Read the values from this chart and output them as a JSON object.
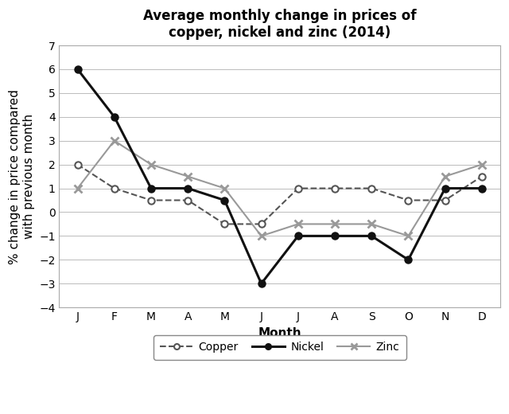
{
  "title": "Average monthly change in prices of\ncopper, nickel and zinc (2014)",
  "xlabel": "Month",
  "ylabel": "% change in price compared\nwith previous month",
  "months": [
    "J",
    "F",
    "M",
    "A",
    "M",
    "J",
    "J",
    "A",
    "S",
    "O",
    "N",
    "D"
  ],
  "copper": [
    2,
    1,
    0.5,
    0.5,
    -0.5,
    -0.5,
    1,
    1,
    1,
    0.5,
    0.5,
    1.5
  ],
  "nickel": [
    6,
    4,
    1,
    1,
    0.5,
    -3,
    -1,
    -1,
    -1,
    -2,
    1,
    1
  ],
  "zinc": [
    1,
    3,
    2,
    1.5,
    1,
    -1,
    -0.5,
    -0.5,
    -0.5,
    -1,
    1.5,
    2
  ],
  "ylim": [
    -4,
    7
  ],
  "yticks": [
    -4,
    -3,
    -2,
    -1,
    0,
    1,
    2,
    3,
    4,
    5,
    6,
    7
  ],
  "copper_color": "#555555",
  "nickel_color": "#111111",
  "zinc_color": "#999999",
  "background_color": "#ffffff",
  "grid_color": "#bbbbbb",
  "title_fontsize": 12,
  "axis_label_fontsize": 11,
  "tick_fontsize": 10,
  "legend_fontsize": 10
}
